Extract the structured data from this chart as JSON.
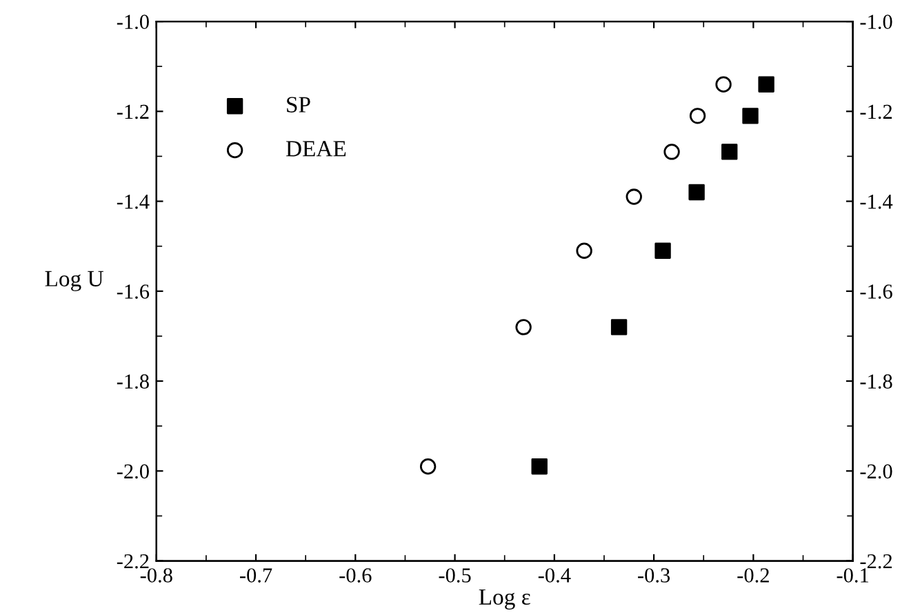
{
  "chart_data": {
    "type": "scatter",
    "xlabel": "Log ε",
    "ylabel": "Log U",
    "xlim": [
      -0.8,
      -0.1
    ],
    "xticks": [
      -0.8,
      -0.7,
      -0.6,
      -0.5,
      -0.4,
      -0.3,
      -0.2,
      -0.1
    ],
    "ylim": [
      -2.2,
      -1.0
    ],
    "yticks": [
      -2.2,
      {
        "value": -2,
        "label": "-2.0"
      },
      -1.8,
      -1.6,
      -1.4,
      -1.2,
      {
        "value": -1,
        "label": "-1.0"
      }
    ],
    "y2lim": [
      -2.2,
      -1.0
    ],
    "y2ticks": [
      -2.2,
      {
        "value": -2,
        "label": "-2.0"
      },
      -1.8,
      -1.6,
      -1.4,
      -1.2,
      {
        "value": -1,
        "label": "-1.0"
      }
    ],
    "legend": "top left",
    "grid": false,
    "series": [
      {
        "name": "SP",
        "color": "#000000",
        "marker": "square",
        "x": [
          -0.415,
          -0.335,
          -0.291,
          -0.257,
          -0.224,
          -0.203,
          -0.187
        ],
        "values": [
          -1.99,
          -1.68,
          -1.51,
          -1.38,
          -1.29,
          -1.21,
          -1.14
        ]
      },
      {
        "name": "DEAE",
        "color": "#000000",
        "marker": "circle",
        "x": [
          -0.527,
          -0.431,
          -0.37,
          -0.32,
          -0.282,
          -0.256,
          -0.23
        ],
        "values": [
          -1.99,
          -1.68,
          -1.51,
          -1.39,
          -1.29,
          -1.21,
          -1.14
        ]
      }
    ]
  }
}
